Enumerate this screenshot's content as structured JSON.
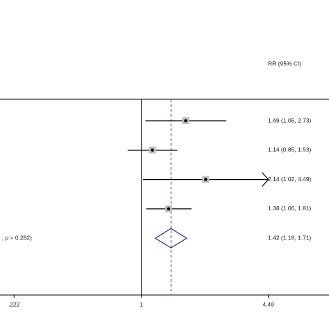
{
  "chart_data": {
    "type": "forest",
    "header": "RR (95% CI)",
    "overall_note": ", p = 0.282)",
    "log_scale": true,
    "xlim": [
      0.188,
      9.2
    ],
    "xticks": [
      {
        "value": 0.222,
        "label": ".222"
      },
      1,
      {
        "value": 4.49,
        "label": "4.49"
      }
    ],
    "null_value": 1,
    "values": [
      1.69,
      1.14,
      2.14,
      1.38
    ],
    "lower": [
      1.05,
      0.85,
      1.02,
      1.06
    ],
    "upper": [
      2.73,
      1.53,
      4.49,
      1.81
    ],
    "value_labels": [
      "1.69 (1.05, 2.73)",
      "1.14 (0.85, 1.53)",
      "2.14 (1.02, 4.49)",
      "1.38 (1.06, 1.81)"
    ],
    "overall": {
      "value": 1.42,
      "lower": 1.18,
      "upper": 1.71,
      "value_label": "1.42 (1.18, 1.71)"
    },
    "box_color": "#bfbfbf",
    "diamond_color": "#1f2a7a",
    "overall_line_color": "#8b1a1a"
  }
}
